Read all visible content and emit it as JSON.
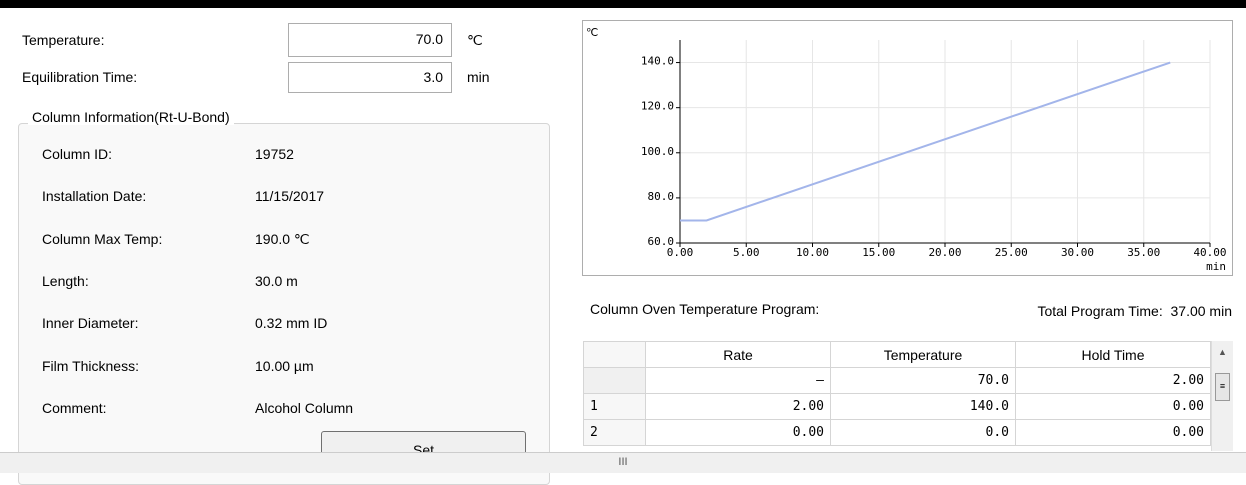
{
  "settings": {
    "temperature": {
      "label": "Temperature:",
      "value": "70.0",
      "unit": "℃"
    },
    "equilibration_time": {
      "label": "Equilibration Time:",
      "value": "3.0",
      "unit": "min"
    }
  },
  "column_info": {
    "title": "Column Information(Rt-U-Bond)",
    "rows": [
      [
        "Column ID:",
        "19752"
      ],
      [
        "Installation Date:",
        "11/15/2017"
      ],
      [
        "Column Max Temp:",
        "190.0 ℃"
      ],
      [
        "Length:",
        "30.0 m"
      ],
      [
        "Inner Diameter:",
        "0.32 mm ID"
      ],
      [
        "Film Thickness:",
        "10.00 µm"
      ],
      [
        "Comment:",
        "Alcohol Column"
      ]
    ],
    "button": "Set"
  },
  "chart_data": {
    "type": "line",
    "y_label": "℃",
    "x_label": "min",
    "x": [
      0,
      2,
      37
    ],
    "series": [
      {
        "color": "#a3b5ea",
        "values": [
          70,
          70,
          140
        ]
      }
    ],
    "xlim": [
      0,
      40
    ],
    "ylim": [
      60,
      150
    ],
    "xticks": [
      {
        "value": 0,
        "label": "0.00"
      },
      {
        "value": 5,
        "label": "5.00"
      },
      {
        "value": 10,
        "label": "10.00"
      },
      {
        "value": 15,
        "label": "15.00"
      },
      {
        "value": 20,
        "label": "20.00"
      },
      {
        "value": 25,
        "label": "25.00"
      },
      {
        "value": 30,
        "label": "30.00"
      },
      {
        "value": 35,
        "label": "35.00"
      },
      {
        "value": 40,
        "label": "40.00"
      }
    ],
    "yticks": [
      {
        "value": 60,
        "label": "60.0"
      },
      {
        "value": 80,
        "label": "80.0"
      },
      {
        "value": 100,
        "label": "100.0"
      },
      {
        "value": 120,
        "label": "120.0"
      },
      {
        "value": 140,
        "label": "140.0"
      }
    ],
    "grid": true
  },
  "program": {
    "label": "Column Oven Temperature Program:",
    "total": "Total Program Time:  37.00 min"
  },
  "table": {
    "headers": [
      "Rate",
      "Temperature",
      "Hold Time"
    ],
    "rows": [
      {
        "cells": [
          "–",
          "70.0",
          "2.00"
        ]
      },
      {
        "index": "1",
        "cells": [
          "2.00",
          "140.0",
          "0.00"
        ]
      },
      {
        "index": "2",
        "cells": [
          "0.00",
          "0.0",
          "0.00"
        ]
      }
    ]
  },
  "scrollbar": "III"
}
